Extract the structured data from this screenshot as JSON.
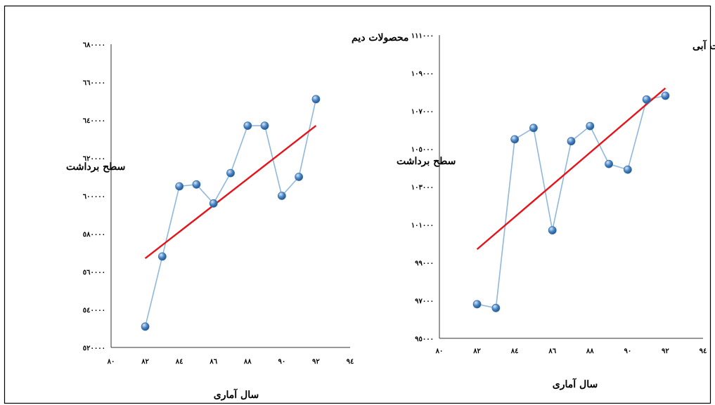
{
  "colors": {
    "series_line": "#8fb8de",
    "trend_line": "#e5141b",
    "point_fill": "#4a86c5",
    "frame": "#000000"
  },
  "chart_data": [
    {
      "type": "line",
      "title": "محصولات دیم",
      "xlabel": "سال آماری",
      "ylabel": "سطح برداشت",
      "xlim": [
        80,
        94
      ],
      "ylim": [
        520000,
        680000
      ],
      "x_ticks": [
        80,
        82,
        84,
        86,
        88,
        90,
        92,
        94
      ],
      "x_tick_labels": [
        "۸۰",
        "۸۲",
        "۸٤",
        "۸٦",
        "۸۸",
        "۹۰",
        "۹۲",
        "۹٤"
      ],
      "y_ticks": [
        520000,
        540000,
        560000,
        580000,
        600000,
        620000,
        640000,
        660000,
        680000
      ],
      "y_tick_labels": [
        "٥۲۰۰۰۰",
        "٥٤۰۰۰۰",
        "٥٦۰۰۰۰",
        "٥۸۰۰۰۰",
        "٦۰۰۰۰۰",
        "٦۲۰۰۰۰",
        "٦٤۰۰۰۰",
        "٦٦۰۰۰۰",
        "٦۸۰۰۰۰"
      ],
      "grid": false,
      "x": [
        82,
        83,
        84,
        85,
        86,
        87,
        88,
        89,
        90,
        91,
        92
      ],
      "series": [
        {
          "values": [
            531000,
            568000,
            605000,
            606000,
            596000,
            612000,
            637000,
            637000,
            600000,
            610000,
            651000
          ]
        }
      ],
      "trendline": {
        "x": [
          82,
          92
        ],
        "y": [
          567000,
          637000
        ]
      }
    },
    {
      "type": "line",
      "title": "محصولات آبی",
      "xlabel": "سال آماری",
      "ylabel": "سطح برداشت",
      "xlim": [
        80,
        94
      ],
      "ylim": [
        95000,
        111000
      ],
      "x_ticks": [
        80,
        82,
        84,
        86,
        88,
        90,
        92,
        94
      ],
      "x_tick_labels": [
        "۸۰",
        "۸۲",
        "۸٤",
        "۸٦",
        "۸۸",
        "۹۰",
        "۹۲",
        "۹٤"
      ],
      "y_ticks": [
        95000,
        97000,
        99000,
        101000,
        103000,
        105000,
        107000,
        109000,
        111000
      ],
      "y_tick_labels": [
        "۹٥۰۰۰",
        "۹۷۰۰۰",
        "۹۹۰۰۰",
        "۱۰۱۰۰۰",
        "۱۰۳۰۰۰",
        "۱۰٥۰۰۰",
        "۱۰۷۰۰۰",
        "۱۰۹۰۰۰",
        "۱۱۱۰۰۰"
      ],
      "grid": false,
      "x": [
        82,
        83,
        84,
        85,
        86,
        87,
        88,
        89,
        90,
        91,
        92
      ],
      "series": [
        {
          "values": [
            96800,
            96600,
            105500,
            106100,
            100700,
            105400,
            106200,
            104200,
            103900,
            107600,
            107800
          ]
        }
      ],
      "trendline": {
        "x": [
          82,
          92
        ],
        "y": [
          99700,
          108200
        ]
      }
    }
  ]
}
